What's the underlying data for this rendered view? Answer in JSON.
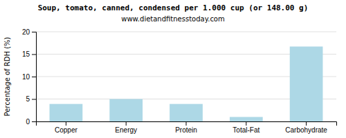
{
  "chart_data": {
    "type": "bar",
    "title": "Soup, tomato, canned, condensed per 1.000 cup (or 148.00 g)",
    "subtitle": "www.dietandfitnesstoday.com",
    "categories": [
      "Copper",
      "Energy",
      "Protein",
      "Total-Fat",
      "Carbohydrate"
    ],
    "values": [
      3.9,
      5.0,
      3.9,
      1.0,
      16.7
    ],
    "color": "#add8e6",
    "ylabel": "Percentage of RDH (%)",
    "ylim": [
      0,
      20
    ],
    "yticks": [
      0,
      5,
      10,
      15,
      20
    ],
    "grid": true
  }
}
